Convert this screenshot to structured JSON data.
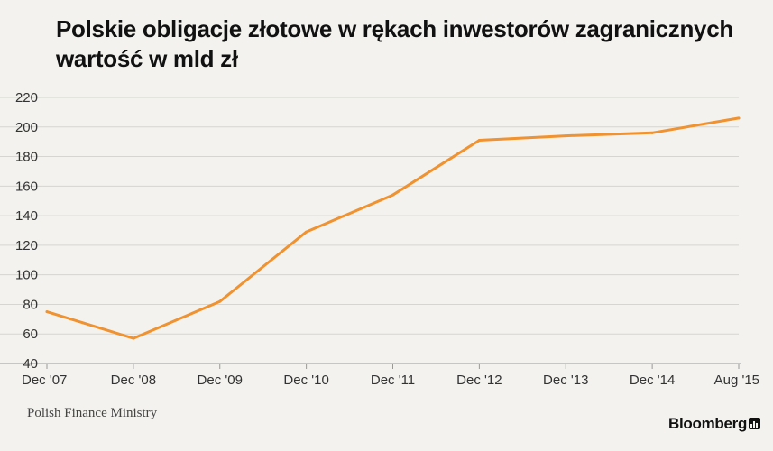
{
  "header": {
    "title_line1": "Polskie obligacje złotowe w rękach inwestorów zagranicznych",
    "title_line2": "wartość w mld zł"
  },
  "footer": {
    "source": "Polish Finance Ministry",
    "brand": "Bloomberg"
  },
  "colors": {
    "line": "#f0922f",
    "grid": "#d6d5d0",
    "axis": "#999999",
    "background": "#f3f2ee"
  },
  "chart_data": {
    "type": "line",
    "title": "Polskie obligacje złotowe w rękach inwestorów zagranicznych",
    "subtitle": "wartość w mld zł",
    "xlabel": "",
    "ylabel": "",
    "categories": [
      "Dec '07",
      "Dec '08",
      "Dec '09",
      "Dec '10",
      "Dec '11",
      "Dec '12",
      "Dec '13",
      "Dec '14",
      "Aug '15"
    ],
    "series": [
      {
        "values": [
          75,
          57,
          82,
          129,
          154,
          191,
          194,
          196,
          206
        ]
      }
    ],
    "ylim": [
      40,
      220
    ],
    "yticks": [
      40,
      60,
      80,
      100,
      120,
      140,
      160,
      180,
      200,
      220
    ],
    "grid": true,
    "legend": "none"
  }
}
